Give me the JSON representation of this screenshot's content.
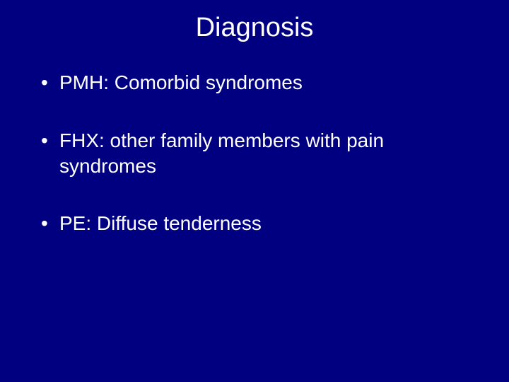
{
  "slide": {
    "background_color": "#000080",
    "text_color": "#ffffff",
    "title": "Diagnosis",
    "title_fontsize": 38,
    "title_fontweight": "400",
    "bullet_fontsize": 28,
    "bullet_fontweight": "400",
    "bullets": [
      "PMH: Comorbid syndromes",
      "FHX: other family members with pain syndromes",
      "PE: Diffuse tenderness"
    ]
  }
}
